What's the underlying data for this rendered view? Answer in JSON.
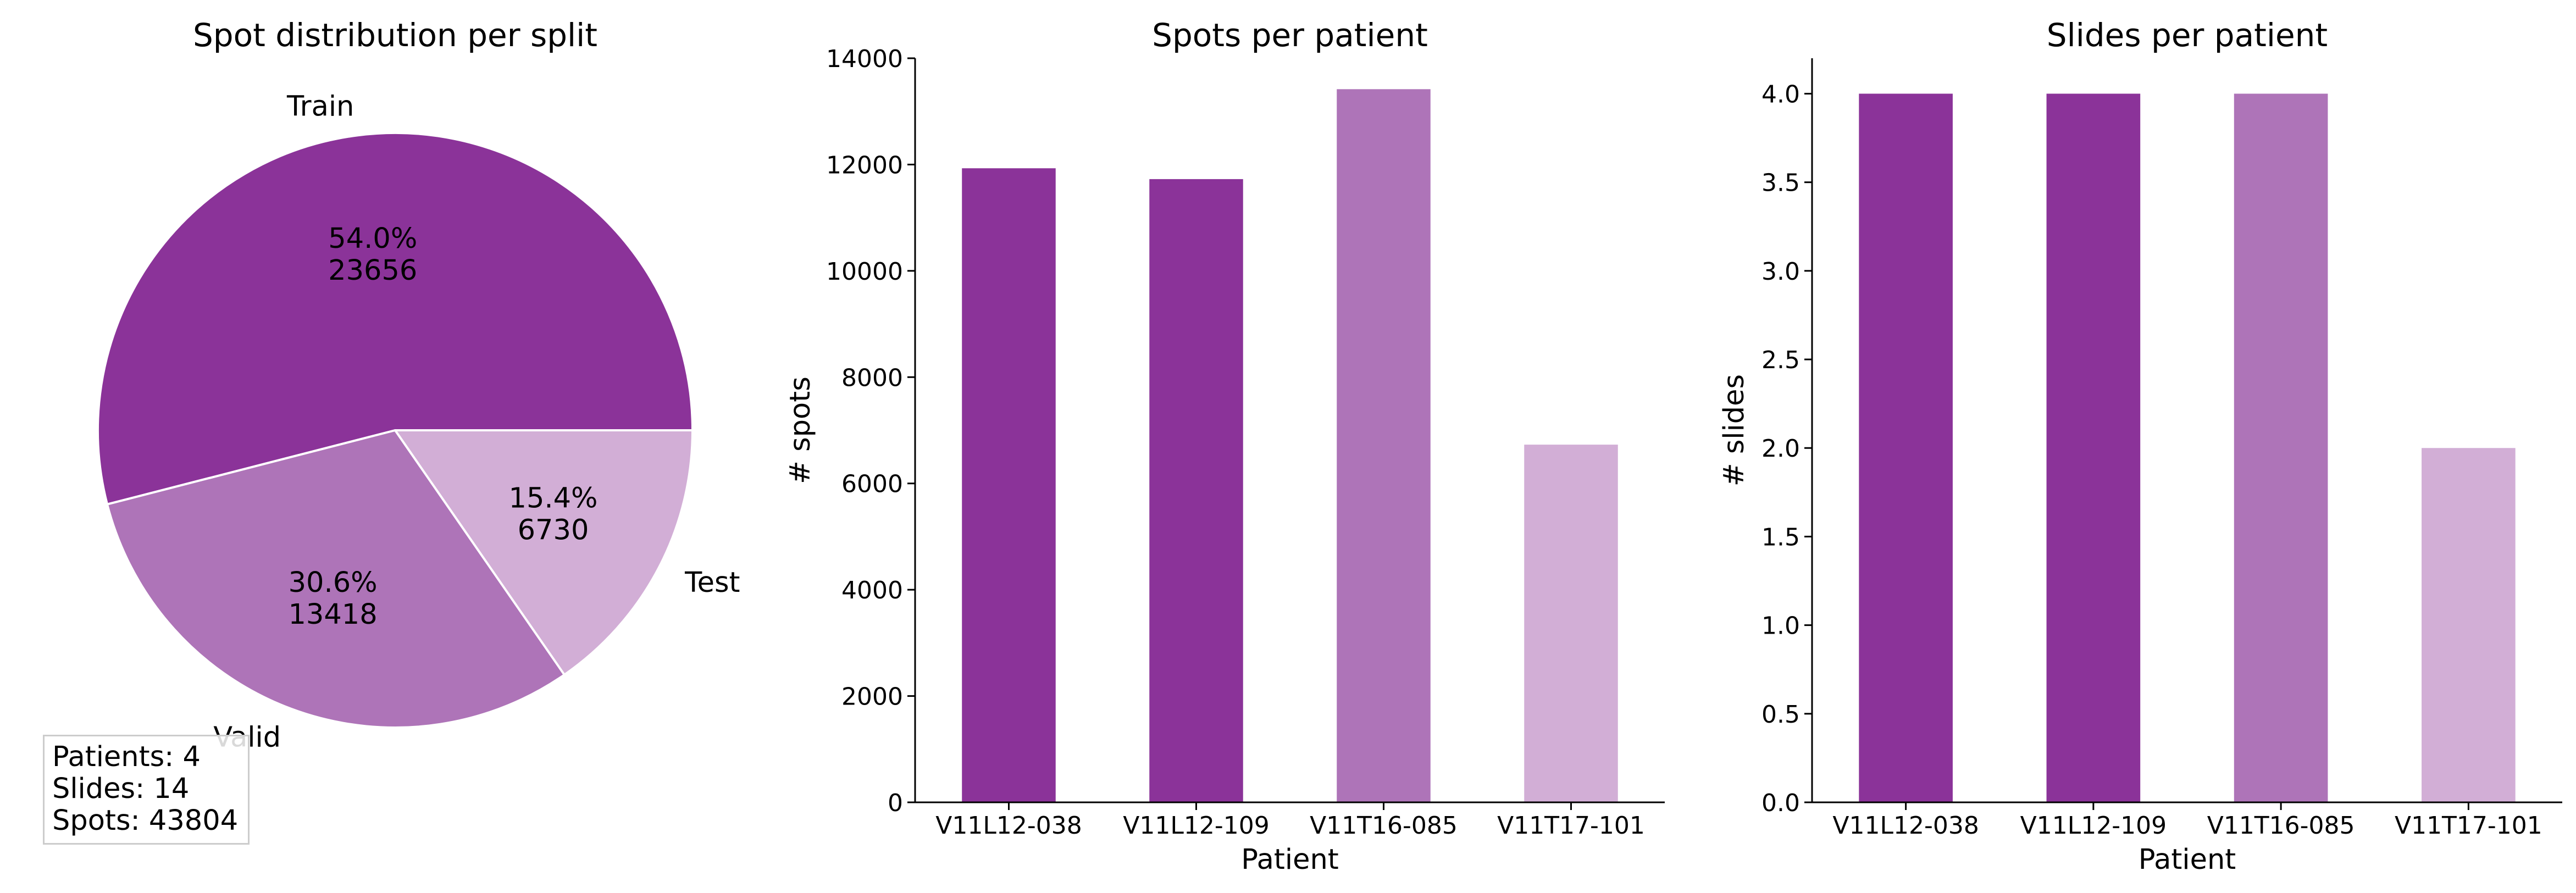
{
  "chart_data": [
    {
      "type": "pie",
      "title": "Spot distribution per split",
      "labels": [
        "Train",
        "Valid",
        "Test"
      ],
      "values": [
        23656,
        13418,
        6730
      ],
      "percent_labels": [
        "54.0%",
        "30.6%",
        "15.4%"
      ],
      "colors": [
        "#8b3399",
        "#ae74b8",
        "#d2aed6"
      ],
      "annotation": [
        "Patients: 4",
        "Slides: 14",
        "Spots: 43804"
      ]
    },
    {
      "type": "bar",
      "title": "Spots per patient",
      "xlabel": "Patient",
      "ylabel": "# spots",
      "categories": [
        "V11L12-038",
        "V11L12-109",
        "V11T16-085",
        "V11T17-101"
      ],
      "values": [
        11930,
        11726,
        13418,
        6730
      ],
      "colors": [
        "#8b3399",
        "#8b3399",
        "#ae74b8",
        "#d2aed6"
      ],
      "ylim": [
        0,
        14000
      ],
      "yticks": [
        0,
        2000,
        4000,
        6000,
        8000,
        10000,
        12000,
        14000
      ],
      "ytick_labels": [
        "0",
        "2000",
        "4000",
        "6000",
        "8000",
        "10000",
        "12000",
        "14000"
      ]
    },
    {
      "type": "bar",
      "title": "Slides per patient",
      "xlabel": "Patient",
      "ylabel": "# slides",
      "categories": [
        "V11L12-038",
        "V11L12-109",
        "V11T16-085",
        "V11T17-101"
      ],
      "values": [
        4,
        4,
        4,
        2
      ],
      "colors": [
        "#8b3399",
        "#8b3399",
        "#ae74b8",
        "#d2aed6"
      ],
      "ylim": [
        0,
        4.2
      ],
      "yticks": [
        0,
        0.5,
        1.0,
        1.5,
        2.0,
        2.5,
        3.0,
        3.5,
        4.0
      ],
      "ytick_labels": [
        "0.0",
        "0.5",
        "1.0",
        "1.5",
        "2.0",
        "2.5",
        "3.0",
        "3.5",
        "4.0"
      ]
    }
  ]
}
